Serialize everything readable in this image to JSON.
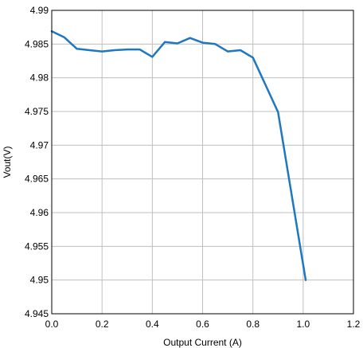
{
  "chart_data": {
    "type": "line",
    "title": "",
    "xlabel": "Output Current (A)",
    "ylabel": "Vout(V)",
    "xlim": [
      0,
      1.2
    ],
    "ylim": [
      4.945,
      4.99
    ],
    "x_ticks": [
      "0.0",
      "0.2",
      "0.4",
      "0.6",
      "0.8",
      "1.0",
      "1.2"
    ],
    "y_ticks": [
      "4.945",
      "4.95",
      "4.955",
      "4.96",
      "4.965",
      "4.97",
      "4.975",
      "4.98",
      "4.985",
      "4.99"
    ],
    "grid": true,
    "legend": "none",
    "series": [
      {
        "color": "#1f77c0",
        "x": [
          0.0,
          0.05,
          0.1,
          0.15,
          0.2,
          0.25,
          0.3,
          0.35,
          0.4,
          0.45,
          0.5,
          0.55,
          0.6,
          0.65,
          0.7,
          0.75,
          0.8,
          0.9,
          1.01
        ],
        "y": [
          4.9869,
          4.986,
          4.9843,
          4.9841,
          4.9839,
          4.9841,
          4.9842,
          4.9842,
          4.9831,
          4.9853,
          4.9851,
          4.9859,
          4.9852,
          4.985,
          4.9839,
          4.9841,
          4.983,
          4.9749,
          4.95
        ]
      }
    ]
  }
}
